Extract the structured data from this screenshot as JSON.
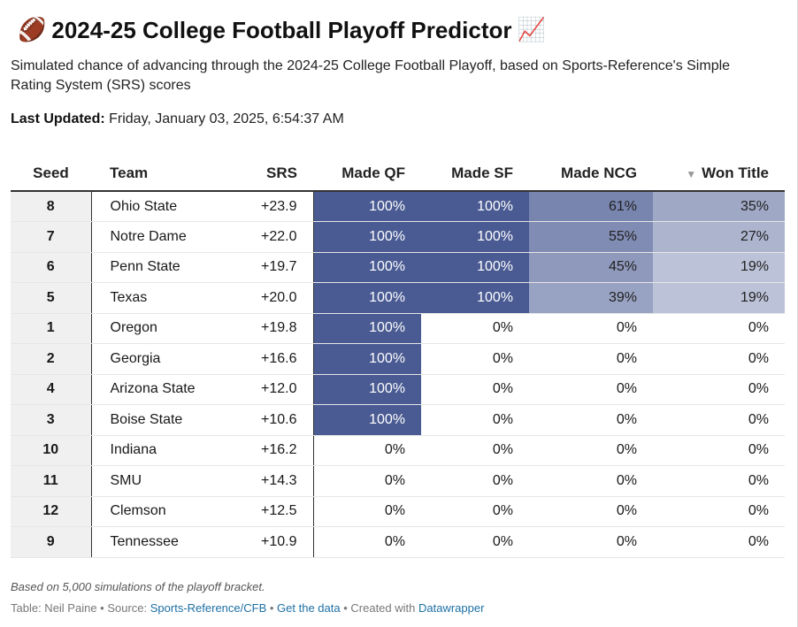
{
  "title": "2024-25 College Football Playoff Predictor",
  "title_icon_left": "football-icon",
  "title_icon_right": "chart-increasing-icon",
  "subtitle": "Simulated chance of advancing through the 2024-25 College Football Playoff, based on Sports-Reference's Simple Rating System (SRS) scores",
  "last_updated": {
    "label": "Last Updated:",
    "value": "Friday, January 03, 2025, 6:54:37 AM"
  },
  "table": {
    "headers": {
      "seed": "Seed",
      "team": "Team",
      "srs": "SRS",
      "qf": "Made QF",
      "sf": "Made SF",
      "ncg": "Made NCG",
      "won": "Won Title"
    },
    "sorted_column": "won",
    "rows": [
      {
        "seed": "8",
        "team": "Ohio State",
        "srs": "+23.9",
        "qf": "100%",
        "sf": "100%",
        "ncg": "61%",
        "won": "35%"
      },
      {
        "seed": "7",
        "team": "Notre Dame",
        "srs": "+22.0",
        "qf": "100%",
        "sf": "100%",
        "ncg": "55%",
        "won": "27%"
      },
      {
        "seed": "6",
        "team": "Penn State",
        "srs": "+19.7",
        "qf": "100%",
        "sf": "100%",
        "ncg": "45%",
        "won": "19%"
      },
      {
        "seed": "5",
        "team": "Texas",
        "srs": "+20.0",
        "qf": "100%",
        "sf": "100%",
        "ncg": "39%",
        "won": "19%"
      },
      {
        "seed": "1",
        "team": "Oregon",
        "srs": "+19.8",
        "qf": "100%",
        "sf": "0%",
        "ncg": "0%",
        "won": "0%"
      },
      {
        "seed": "2",
        "team": "Georgia",
        "srs": "+16.6",
        "qf": "100%",
        "sf": "0%",
        "ncg": "0%",
        "won": "0%"
      },
      {
        "seed": "4",
        "team": "Arizona State",
        "srs": "+12.0",
        "qf": "100%",
        "sf": "0%",
        "ncg": "0%",
        "won": "0%"
      },
      {
        "seed": "3",
        "team": "Boise State",
        "srs": "+10.6",
        "qf": "100%",
        "sf": "0%",
        "ncg": "0%",
        "won": "0%"
      },
      {
        "seed": "10",
        "team": "Indiana",
        "srs": "+16.2",
        "qf": "0%",
        "sf": "0%",
        "ncg": "0%",
        "won": "0%"
      },
      {
        "seed": "11",
        "team": "SMU",
        "srs": "+14.3",
        "qf": "0%",
        "sf": "0%",
        "ncg": "0%",
        "won": "0%"
      },
      {
        "seed": "12",
        "team": "Clemson",
        "srs": "+12.5",
        "qf": "0%",
        "sf": "0%",
        "ncg": "0%",
        "won": "0%"
      },
      {
        "seed": "9",
        "team": "Tennessee",
        "srs": "+10.9",
        "qf": "0%",
        "sf": "0%",
        "ncg": "0%",
        "won": "0%"
      }
    ]
  },
  "colors": {
    "heat_max": "#4a5b93",
    "heat_min": "#ffffff"
  },
  "footer": {
    "note": "Based on 5,000 simulations of the playoff bracket.",
    "table_credit": "Table: Neil Paine",
    "separator": " • ",
    "source_label": "Source: ",
    "source_link": "Sports-Reference/CFB",
    "data_link": "Get the data",
    "created_label": "Created with ",
    "created_link": "Datawrapper"
  }
}
